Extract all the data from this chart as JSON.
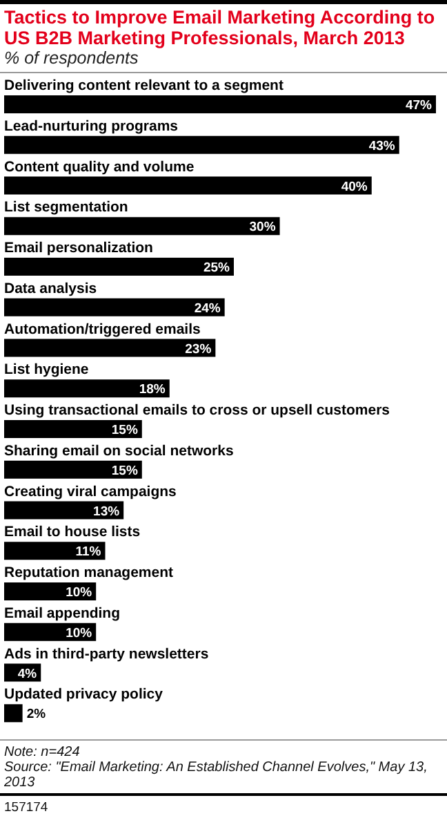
{
  "chart_data": {
    "type": "bar",
    "orientation": "horizontal",
    "title": "Tactics to Improve Email Marketing According to US B2B Marketing Professionals, March 2013",
    "subtitle": "% of respondents",
    "categories": [
      "Delivering content relevant to a segment",
      "Lead-nurturing programs",
      "Content quality and volume",
      "List segmentation",
      "Email personalization",
      "Data analysis",
      "Automation/triggered emails",
      "List hygiene",
      "Using transactional emails to cross or upsell customers",
      "Sharing email on social networks",
      "Creating viral campaigns",
      "Email to house lists",
      "Reputation management",
      "Email appending",
      "Ads in third-party newsletters",
      "Updated privacy policy"
    ],
    "values": [
      47,
      43,
      40,
      30,
      25,
      24,
      23,
      18,
      15,
      15,
      13,
      11,
      10,
      10,
      4,
      2
    ],
    "value_labels": [
      "47%",
      "43%",
      "40%",
      "30%",
      "25%",
      "24%",
      "23%",
      "18%",
      "15%",
      "15%",
      "13%",
      "11%",
      "10%",
      "10%",
      "4%",
      "2%"
    ],
    "color": "#000000",
    "annotations": [
      "Note: n=424",
      "Source: \"Email Marketing: An Established Channel Evolves,\" May 13, 2013",
      "157174"
    ]
  }
}
